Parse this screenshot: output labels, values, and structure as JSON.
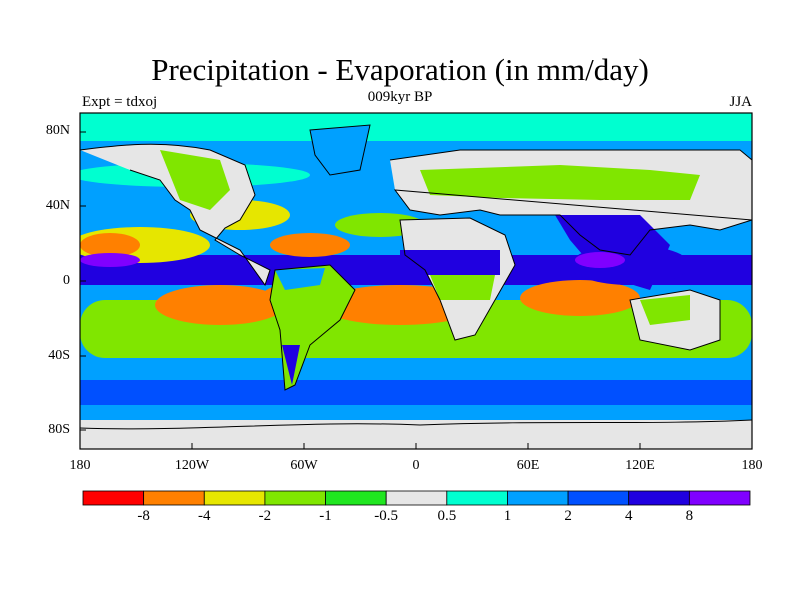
{
  "title": "Precipitation - Evaporation (in mm/day)",
  "subtitle": "009kyr BP",
  "experiment_label": "Expt = tdxoj",
  "season_label": "JJA",
  "latitude_ticks": [
    "80N",
    "40N",
    "0",
    "40S",
    "80S"
  ],
  "longitude_ticks": [
    "180",
    "120W",
    "60W",
    "0",
    "60E",
    "120E",
    "180"
  ],
  "colorbar": {
    "colors": [
      "#ff0000",
      "#ff8000",
      "#e6e600",
      "#80e600",
      "#20e620",
      "#e6e6e6",
      "#00ffd0",
      "#00a0ff",
      "#0050ff",
      "#2000e0",
      "#8000ff"
    ],
    "labels": [
      "-8",
      "-4",
      "-2",
      "-1",
      "-0.5",
      "0.5",
      "1",
      "2",
      "4",
      "8"
    ]
  }
}
